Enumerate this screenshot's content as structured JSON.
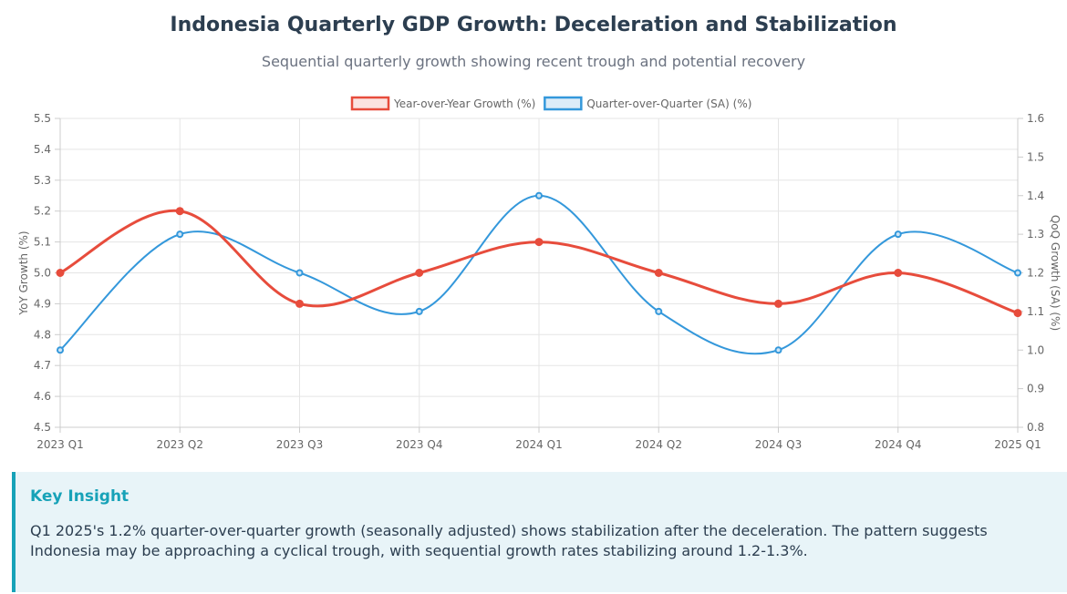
{
  "header": {
    "title": "Indonesia Quarterly GDP Growth: Deceleration and Stabilization",
    "subtitle": "Sequential quarterly growth showing recent trough and potential recovery"
  },
  "chart_data": {
    "type": "line",
    "title": "Indonesia Quarterly GDP Growth: Deceleration and Stabilization",
    "subtitle": "Sequential quarterly growth showing recent trough and potential recovery",
    "categories": [
      "2023 Q1",
      "2023 Q2",
      "2023 Q3",
      "2023 Q4",
      "2024 Q1",
      "2024 Q2",
      "2024 Q3",
      "2024 Q4",
      "2025 Q1"
    ],
    "series": [
      {
        "name": "Year-over-Year Growth (%)",
        "axis": "left",
        "color": "#e74c3c",
        "values": [
          5.0,
          5.2,
          4.9,
          5.0,
          5.1,
          5.0,
          4.9,
          5.0,
          4.87
        ]
      },
      {
        "name": "Quarter-over-Quarter (SA) (%)",
        "axis": "right",
        "color": "#3498db",
        "values": [
          1.0,
          1.3,
          1.2,
          1.1,
          1.4,
          1.1,
          1.0,
          1.3,
          1.2
        ]
      }
    ],
    "ylabel_left": "YoY Growth (%)",
    "ylabel_right": "QoQ Growth (SA) (%)",
    "ylim_left": [
      4.5,
      5.5
    ],
    "ylim_right": [
      0.8,
      1.6
    ],
    "yticks_left": [
      "4.5",
      "4.6",
      "4.7",
      "4.8",
      "4.9",
      "5.0",
      "5.1",
      "5.2",
      "5.3",
      "5.4",
      "5.5"
    ],
    "yticks_right": [
      "0.8",
      "0.9",
      "1.0",
      "1.1",
      "1.2",
      "1.3",
      "1.4",
      "1.5",
      "1.6"
    ],
    "grid": true,
    "legend_position": "top"
  },
  "insight": {
    "title": "Key Insight",
    "text": "Q1 2025's 1.2% quarter-over-quarter growth (seasonally adjusted) shows stabilization after the deceleration. The pattern suggests Indonesia may be approaching a cyclical trough, with sequential growth rates stabilizing around 1.2-1.3%."
  },
  "colors": {
    "title": "#2c3e50",
    "accent": "#17a2b8",
    "grid": "#e5e5e5",
    "tick_text": "#666666"
  }
}
